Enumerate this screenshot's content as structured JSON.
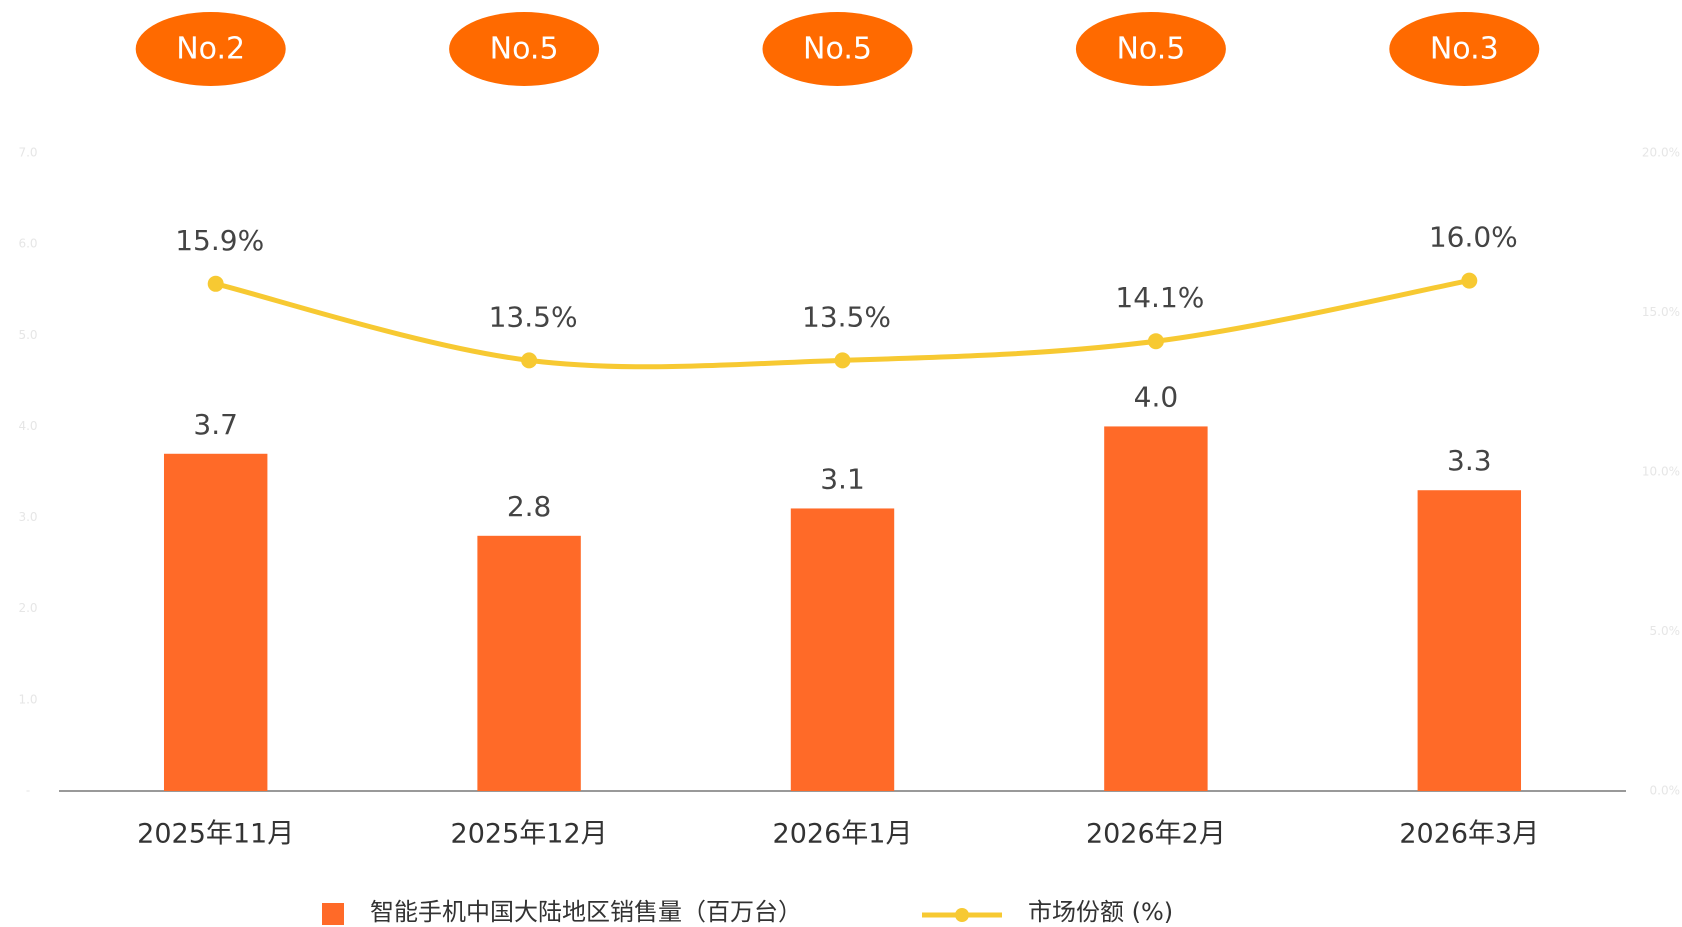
{
  "chart_data": {
    "type": "bar",
    "ranks": [
      "No.2",
      "No.5",
      "No.5",
      "No.5",
      "No.3"
    ],
    "categories": [
      "2025年11月",
      "2025年12月",
      "2026年1月",
      "2026年2月",
      "2026年3月"
    ],
    "series": [
      {
        "name": "智能手机中国大陆地区销售量（百万台）",
        "type": "bar",
        "color": "#ff6a28",
        "values": [
          3.7,
          2.8,
          3.1,
          4.0,
          3.3
        ],
        "value_labels": [
          "3.7",
          "2.8",
          "3.1",
          "4.0",
          "3.3"
        ]
      },
      {
        "name": "市场份额 (%)",
        "type": "line",
        "axis": "y2",
        "color": "#f7c932",
        "values": [
          15.9,
          13.5,
          13.5,
          14.1,
          16.0
        ],
        "value_labels": [
          "15.9%",
          "13.5%",
          "13.5%",
          "14.1%",
          "16.0%"
        ]
      }
    ],
    "ylim": [
      0,
      7
    ],
    "yticks": [
      {
        "value": 0,
        "label": "-"
      },
      {
        "value": 1,
        "label": "1.0"
      },
      {
        "value": 2,
        "label": "2.0"
      },
      {
        "value": 3,
        "label": "3.0"
      },
      {
        "value": 4,
        "label": "4.0"
      },
      {
        "value": 5,
        "label": "5.0"
      },
      {
        "value": 6,
        "label": "6.0"
      },
      {
        "value": 7,
        "label": "7.0"
      }
    ],
    "y2lim": [
      0,
      20
    ],
    "y2ticks": [
      {
        "value": 0,
        "label": "0.0%"
      },
      {
        "value": 5,
        "label": "5.0%"
      },
      {
        "value": 10,
        "label": "10.0%"
      },
      {
        "value": 15,
        "label": "15.0%"
      },
      {
        "value": 20,
        "label": "20.0%"
      }
    ]
  }
}
